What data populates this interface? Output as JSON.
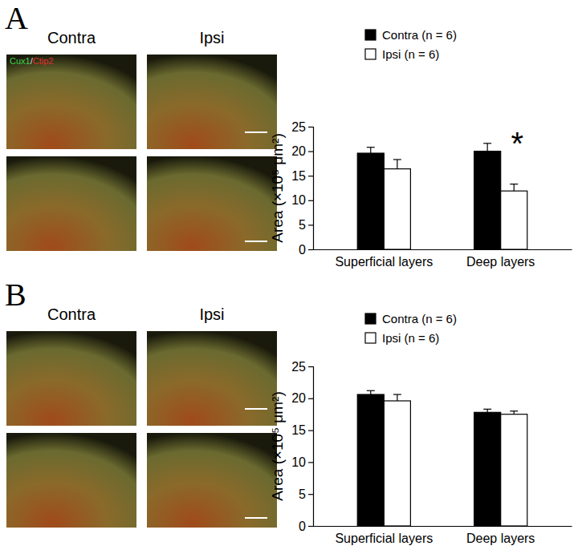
{
  "panels": [
    {
      "label": "A",
      "columns": [
        "Contra",
        "Ipsi"
      ],
      "stain": [
        {
          "text": "Cux1",
          "color": "#3fd04a"
        },
        {
          "text": "/",
          "color": "#d8d8d8"
        },
        {
          "text": "Ctip2",
          "color": "#e03030"
        }
      ]
    },
    {
      "label": "B",
      "columns": [
        "Contra",
        "Ipsi"
      ],
      "stain": []
    }
  ],
  "chart_data": [
    {
      "type": "bar",
      "y_label": "Area (×10⁵ μm²)",
      "categories": [
        "Superficial layers",
        "Deep layers"
      ],
      "series": [
        {
          "name": "Contra (n = 6)",
          "color": "#000000",
          "values": [
            19.6,
            20.0
          ],
          "errors": [
            1.2,
            1.6
          ]
        },
        {
          "name": "Ipsi (n = 6)",
          "color": "#ffffff",
          "values": [
            16.4,
            11.9
          ],
          "errors": [
            1.9,
            1.4
          ]
        }
      ],
      "ylim": [
        0,
        25
      ],
      "yticks": [
        0,
        5,
        10,
        15,
        20,
        25
      ],
      "annotations": [
        {
          "text": "*",
          "x": "Deep layers"
        }
      ]
    },
    {
      "type": "bar",
      "y_label": "Area (×10⁵ μm²)",
      "categories": [
        "Superficial layers",
        "Deep layers"
      ],
      "series": [
        {
          "name": "Contra (n = 6)",
          "color": "#000000",
          "values": [
            20.6,
            17.8
          ],
          "errors": [
            0.6,
            0.5
          ]
        },
        {
          "name": "Ipsi (n = 6)",
          "color": "#ffffff",
          "values": [
            19.6,
            17.5
          ],
          "errors": [
            1.0,
            0.5
          ]
        }
      ],
      "ylim": [
        0,
        25
      ],
      "yticks": [
        0,
        5,
        10,
        15,
        20,
        25
      ],
      "annotations": []
    }
  ]
}
